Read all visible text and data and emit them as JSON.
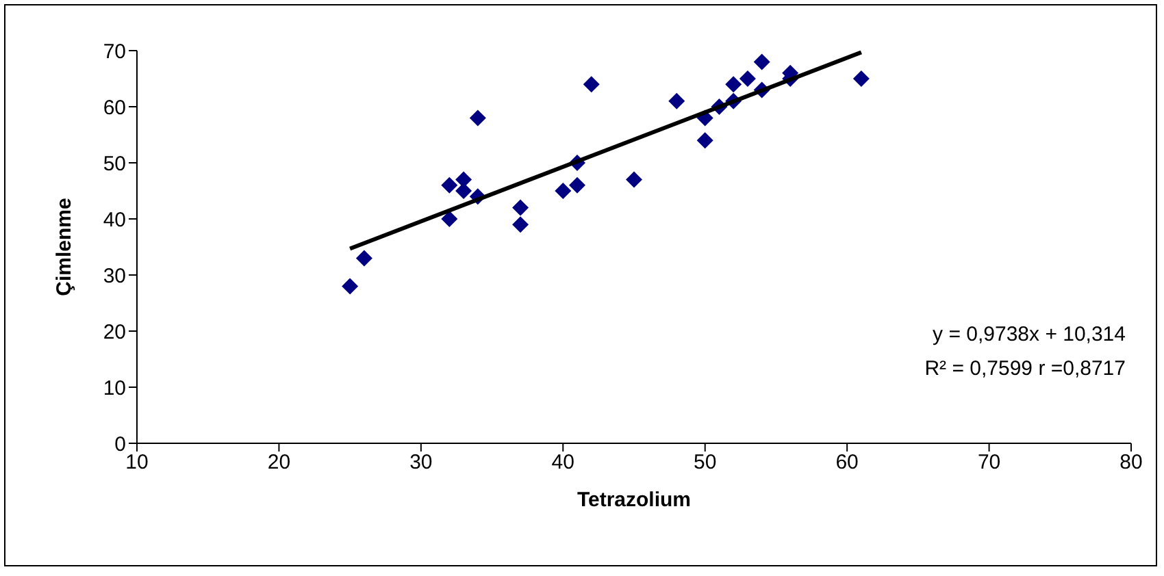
{
  "chart_data": {
    "type": "scatter",
    "xlabel": "Tetrazolium",
    "ylabel": "Çimlenme",
    "xlim": [
      10,
      80
    ],
    "ylim": [
      0,
      70
    ],
    "xticks": [
      10,
      20,
      30,
      40,
      50,
      60,
      70,
      80
    ],
    "yticks": [
      0,
      10,
      20,
      30,
      40,
      50,
      60,
      70
    ],
    "marker": "diamond",
    "series": [
      {
        "color": "#000080",
        "x": [
          25,
          26,
          32,
          32,
          33,
          33,
          34,
          34,
          37,
          37,
          40,
          41,
          41,
          42,
          45,
          48,
          50,
          50,
          51,
          52,
          52,
          53,
          54,
          54,
          56,
          56,
          61
        ],
        "values": [
          28,
          33,
          46,
          40,
          47,
          45,
          44,
          58,
          42,
          39,
          45,
          50,
          46,
          64,
          47,
          61,
          58,
          54,
          60,
          61,
          64,
          65,
          68,
          63,
          65,
          66,
          65
        ]
      },
      {
        "type": "line",
        "color": "#000000",
        "marker": "none",
        "line_style": "solid",
        "x": [
          25,
          61
        ],
        "values": [
          34.7,
          69.7
        ]
      }
    ],
    "annotations": [
      "y = 0,9738x + 10,314",
      "R² = 0,7599 r =0,8717"
    ]
  }
}
